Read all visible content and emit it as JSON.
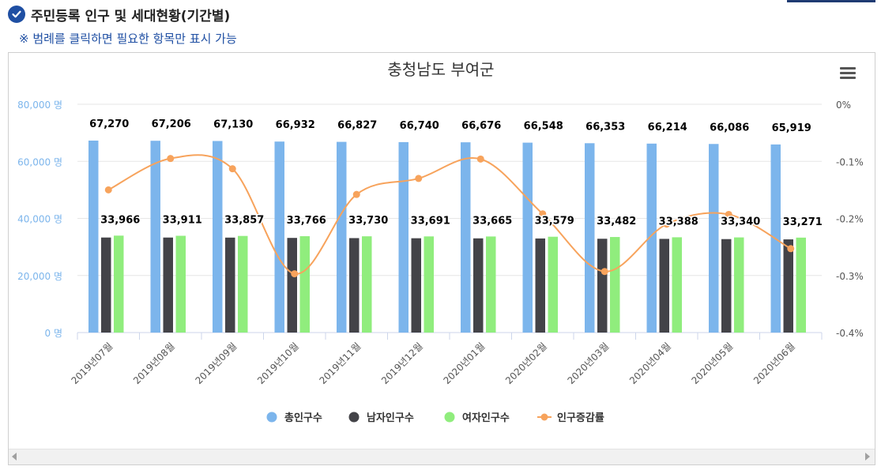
{
  "header": {
    "title": "주민등록 인구 및 세대현황(기간별)",
    "note": "※ 범례를 클릭하면 필요한 항목만 표시 가능",
    "icon": "check-circle-icon"
  },
  "colors": {
    "total": "#7cb5ec",
    "male": "#434348",
    "female": "#90ed7d",
    "rate": "#f7a35c",
    "left_axis": "#7cb5ec",
    "brand": "#1f4fa3"
  },
  "chart_data": {
    "type": "bar",
    "title": "충청남도 부여군",
    "categories": [
      "2019년07월",
      "2019년08월",
      "2019년09월",
      "2019년10월",
      "2019년11월",
      "2019년12월",
      "2020년01월",
      "2020년02월",
      "2020년03월",
      "2020년04월",
      "2020년05월",
      "2020년06월"
    ],
    "series": [
      {
        "name": "총인구수",
        "type": "bar",
        "axis": "left",
        "values": [
          67270,
          67206,
          67130,
          66932,
          66827,
          66740,
          66676,
          66548,
          66353,
          66214,
          66086,
          65919
        ],
        "labels": [
          "67,270",
          "67,206",
          "67,130",
          "66,932",
          "66,827",
          "66,740",
          "66,676",
          "66,548",
          "66,353",
          "66,214",
          "66,086",
          "65,919"
        ]
      },
      {
        "name": "남자인구수",
        "type": "bar",
        "axis": "left",
        "values": [
          33304,
          33295,
          33273,
          33166,
          33097,
          33049,
          33011,
          32969,
          32871,
          32826,
          32746,
          32648
        ]
      },
      {
        "name": "여자인구수",
        "type": "bar",
        "axis": "left",
        "values": [
          33966,
          33911,
          33857,
          33766,
          33730,
          33691,
          33665,
          33579,
          33482,
          33388,
          33340,
          33271
        ],
        "labels": [
          "33,966",
          "33,911",
          "33,857",
          "33,766",
          "33,730",
          "33,691",
          "33,665",
          "33,579",
          "33,482",
          "33,388",
          "33,340",
          "33,271"
        ]
      },
      {
        "name": "인구증감률",
        "type": "line",
        "axis": "right",
        "values": [
          -0.15,
          -0.095,
          -0.113,
          -0.297,
          -0.158,
          -0.13,
          -0.096,
          -0.192,
          -0.293,
          -0.21,
          -0.193,
          -0.253
        ]
      }
    ],
    "y_left": {
      "min": 0,
      "max": 80000,
      "ticks": [
        "0 명",
        "20,000 명",
        "40,000 명",
        "60,000 명",
        "80,000 명"
      ]
    },
    "y_right": {
      "min": -0.4,
      "max": 0,
      "ticks": [
        "-0.4%",
        "-0.3%",
        "-0.2%",
        "-0.1%",
        "0%"
      ]
    },
    "grid": true,
    "legend": "bottom-center"
  }
}
